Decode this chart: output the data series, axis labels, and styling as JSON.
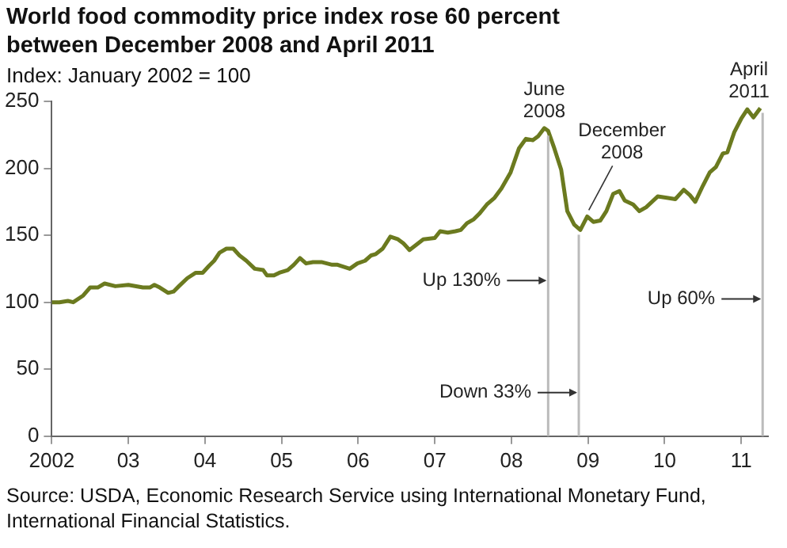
{
  "chart_data": {
    "type": "line",
    "title": "World food commodity price index rose 60 percent between December 2008 and April 2011",
    "subtitle": "Index: January 2002 = 100",
    "x": [
      2002.0,
      2002.1,
      2002.21,
      2002.28,
      2002.41,
      2002.5,
      2002.6,
      2002.69,
      2002.83,
      2003.0,
      2003.19,
      2003.28,
      2003.34,
      2003.41,
      2003.52,
      2003.59,
      2003.66,
      2003.77,
      2003.88,
      2003.97,
      2004.05,
      2004.12,
      2004.19,
      2004.28,
      2004.37,
      2004.45,
      2004.54,
      2004.65,
      2004.76,
      2004.81,
      2004.9,
      2004.97,
      2005.08,
      2005.16,
      2005.24,
      2005.32,
      2005.41,
      2005.52,
      2005.66,
      2005.73,
      2005.89,
      2005.99,
      2006.09,
      2006.17,
      2006.23,
      2006.32,
      2006.42,
      2006.52,
      2006.59,
      2006.67,
      2006.76,
      2006.85,
      2007.0,
      2007.07,
      2007.17,
      2007.27,
      2007.34,
      2007.42,
      2007.51,
      2007.58,
      2007.68,
      2007.78,
      2007.87,
      2007.99,
      2008.1,
      2008.19,
      2008.28,
      2008.35,
      2008.43,
      2008.48,
      2008.56,
      2008.65,
      2008.73,
      2008.82,
      2008.9,
      2008.99,
      2009.07,
      2009.16,
      2009.24,
      2009.33,
      2009.41,
      2009.48,
      2009.59,
      2009.67,
      2009.76,
      2009.91,
      2010.03,
      2010.14,
      2010.25,
      2010.33,
      2010.4,
      2010.5,
      2010.59,
      2010.67,
      2010.76,
      2010.82,
      2010.91,
      2011.0,
      2011.08,
      2011.16,
      2011.25
    ],
    "series": [
      {
        "color": "#6b7a1f",
        "values": [
          100,
          100,
          101,
          100,
          105,
          111,
          111,
          114,
          112,
          113,
          111,
          111,
          113,
          111,
          107,
          108,
          112,
          118,
          122,
          122,
          127,
          131,
          137,
          140,
          140,
          135,
          131,
          125,
          124,
          120,
          120,
          122,
          124,
          128,
          133,
          129,
          130,
          130,
          128,
          128,
          125,
          129,
          131,
          135,
          136,
          140,
          149,
          147,
          144,
          139,
          143,
          147,
          148,
          153,
          152,
          153,
          154,
          159,
          162,
          166,
          173,
          178,
          185,
          197,
          215,
          222,
          221,
          224,
          230,
          228,
          215,
          199,
          168,
          158,
          154,
          164,
          160,
          161,
          168,
          181,
          183,
          176,
          173,
          168,
          171,
          179,
          178,
          177,
          184,
          180,
          175,
          187,
          197,
          201,
          211,
          212,
          227,
          237,
          244,
          238,
          245
        ]
      }
    ],
    "xlim": [
      2002,
      2011.35
    ],
    "xticks": [
      {
        "value": 2002,
        "label": "2002"
      },
      {
        "value": 2003,
        "label": "03"
      },
      {
        "value": 2004,
        "label": "04"
      },
      {
        "value": 2005,
        "label": "05"
      },
      {
        "value": 2006,
        "label": "06"
      },
      {
        "value": 2007,
        "label": "07"
      },
      {
        "value": 2008,
        "label": "08"
      },
      {
        "value": 2009,
        "label": "09"
      },
      {
        "value": 2010,
        "label": "10"
      },
      {
        "value": 2011,
        "label": "11"
      }
    ],
    "ylim": [
      0,
      250
    ],
    "yticks": [
      0,
      50,
      100,
      150,
      200,
      250
    ],
    "grid": false,
    "legend": false,
    "marker": "none",
    "line_style": "solid",
    "ref_lines": [
      {
        "axis": "x",
        "value": 2008.48,
        "label": "Up 130%",
        "color": "#bbbbbb"
      },
      {
        "axis": "x",
        "value": 2008.88,
        "label": "Down 33%",
        "color": "#bbbbbb"
      },
      {
        "axis": "x",
        "value": 2011.28,
        "label": "Up 60%",
        "color": "#bbbbbb"
      }
    ],
    "annotations": [
      {
        "text": "June 2008",
        "x": 2008.43,
        "y": 230
      },
      {
        "text": "December 2008",
        "x": 2008.99,
        "y": 164
      },
      {
        "text": "April 2011",
        "x": 2011.25,
        "y": 245
      },
      "Source: USDA, Economic Research Service using International Monetary Fund, International Financial Statistics."
    ]
  }
}
